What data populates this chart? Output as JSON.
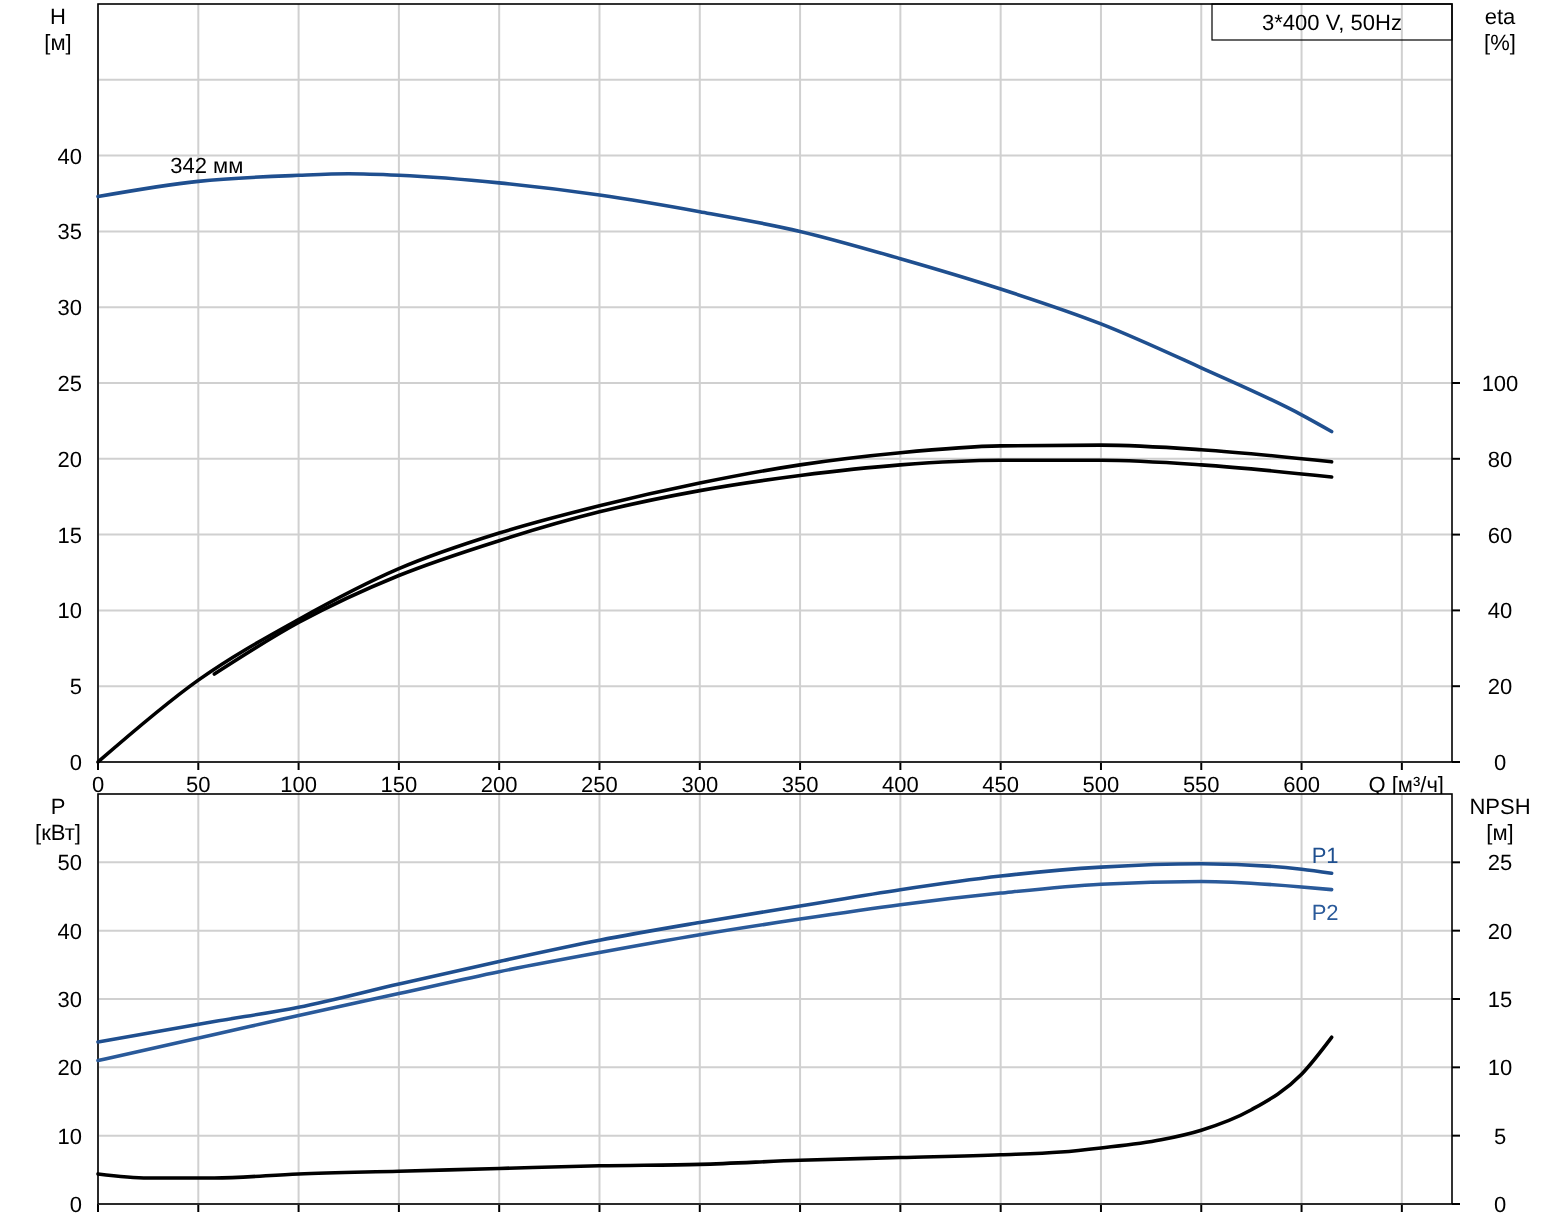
{
  "chart_data": [
    {
      "type": "line",
      "title": "3*400 V, 50Hz",
      "xlabel": "Q [м³/ч]",
      "ylabel": "H [м]",
      "y2label": "eta [%]",
      "xlim": [
        0,
        675
      ],
      "xticks": [
        0,
        50,
        100,
        150,
        200,
        250,
        300,
        350,
        400,
        450,
        500,
        550,
        600,
        {
          "value": 650,
          "label": null
        }
      ],
      "ylim": [
        0,
        50
      ],
      "yticks": [
        0,
        5,
        10,
        15,
        20,
        25,
        30,
        35,
        40,
        {
          "value": 45,
          "label": null
        }
      ],
      "y2lim": [
        0,
        200
      ],
      "y2ticks": [
        0,
        20,
        40,
        60,
        80,
        100
      ],
      "grid": true,
      "annotations": [
        {
          "text": "342 мм",
          "x": 50,
          "y": 38.3
        }
      ],
      "series": [
        {
          "color": "#1f4f8f",
          "x": [
            0,
            50,
            100,
            125,
            150,
            200,
            250,
            300,
            350,
            400,
            450,
            500,
            550,
            600,
            615
          ],
          "values": [
            37.3,
            38.3,
            38.7,
            38.8,
            38.7,
            38.2,
            37.4,
            36.3,
            35.0,
            33.2,
            31.2,
            28.9,
            26.0,
            22.9,
            21.8
          ]
        },
        {
          "color": "#000000",
          "axis": "y2",
          "x": [
            0,
            50,
            100,
            150,
            200,
            250,
            300,
            350,
            400,
            450,
            500,
            550,
            615
          ],
          "values": [
            0,
            21.6,
            37.6,
            51,
            60.4,
            67.6,
            73.6,
            78.4,
            81.6,
            83.4,
            83.6,
            82.4,
            79.2
          ]
        },
        {
          "color": "#000000",
          "axis": "y2",
          "x": [
            58,
            100,
            150,
            200,
            250,
            300,
            350,
            400,
            450,
            500,
            550,
            615
          ],
          "values": [
            23.2,
            36.8,
            49.2,
            58.4,
            66,
            71.6,
            75.6,
            78.4,
            79.6,
            79.6,
            78.4,
            75.2
          ]
        }
      ]
    },
    {
      "type": "line",
      "ylabel": "P [кВт]",
      "y2label": "NPSH [м]",
      "tick_labels": "y",
      "xlim": [
        0,
        675
      ],
      "xticks": [
        0,
        50,
        100,
        150,
        200,
        250,
        300,
        350,
        400,
        450,
        500,
        550,
        600,
        650
      ],
      "ylim": [
        0,
        60
      ],
      "yticks": [
        0,
        10,
        20,
        30,
        40,
        50
      ],
      "y2lim": [
        0,
        30
      ],
      "y2ticks": [
        0,
        5,
        10,
        15,
        20,
        25
      ],
      "grid": true,
      "series": [
        {
          "name": "P1",
          "color": "#1f4f8f",
          "x": [
            0,
            58,
            100,
            150,
            200,
            250,
            300,
            350,
            400,
            450,
            500,
            550,
            600,
            615
          ],
          "values": [
            23.7,
            26.7,
            28.8,
            32.2,
            35.5,
            38.6,
            41.2,
            43.6,
            46,
            48,
            49.3,
            49.8,
            49,
            48.4
          ]
        },
        {
          "name": "P2",
          "color": "#2a5a9a",
          "x": [
            0,
            58,
            100,
            150,
            200,
            250,
            300,
            350,
            400,
            450,
            500,
            550,
            600,
            615
          ],
          "values": [
            21,
            24.8,
            27.6,
            30.8,
            34,
            36.8,
            39.4,
            41.7,
            43.8,
            45.5,
            46.8,
            47.2,
            46.4,
            46
          ]
        },
        {
          "color": "#000000",
          "axis": "y2",
          "x": [
            0,
            25,
            58,
            100,
            150,
            200,
            250,
            300,
            350,
            400,
            450,
            480,
            500,
            530,
            550,
            575,
            600,
            615
          ],
          "values": [
            2.2,
            1.9,
            1.9,
            2.2,
            2.4,
            2.6,
            2.8,
            2.9,
            3.2,
            3.4,
            3.6,
            3.8,
            4.1,
            4.7,
            5.4,
            6.9,
            9.5,
            12.2
          ]
        }
      ]
    }
  ]
}
